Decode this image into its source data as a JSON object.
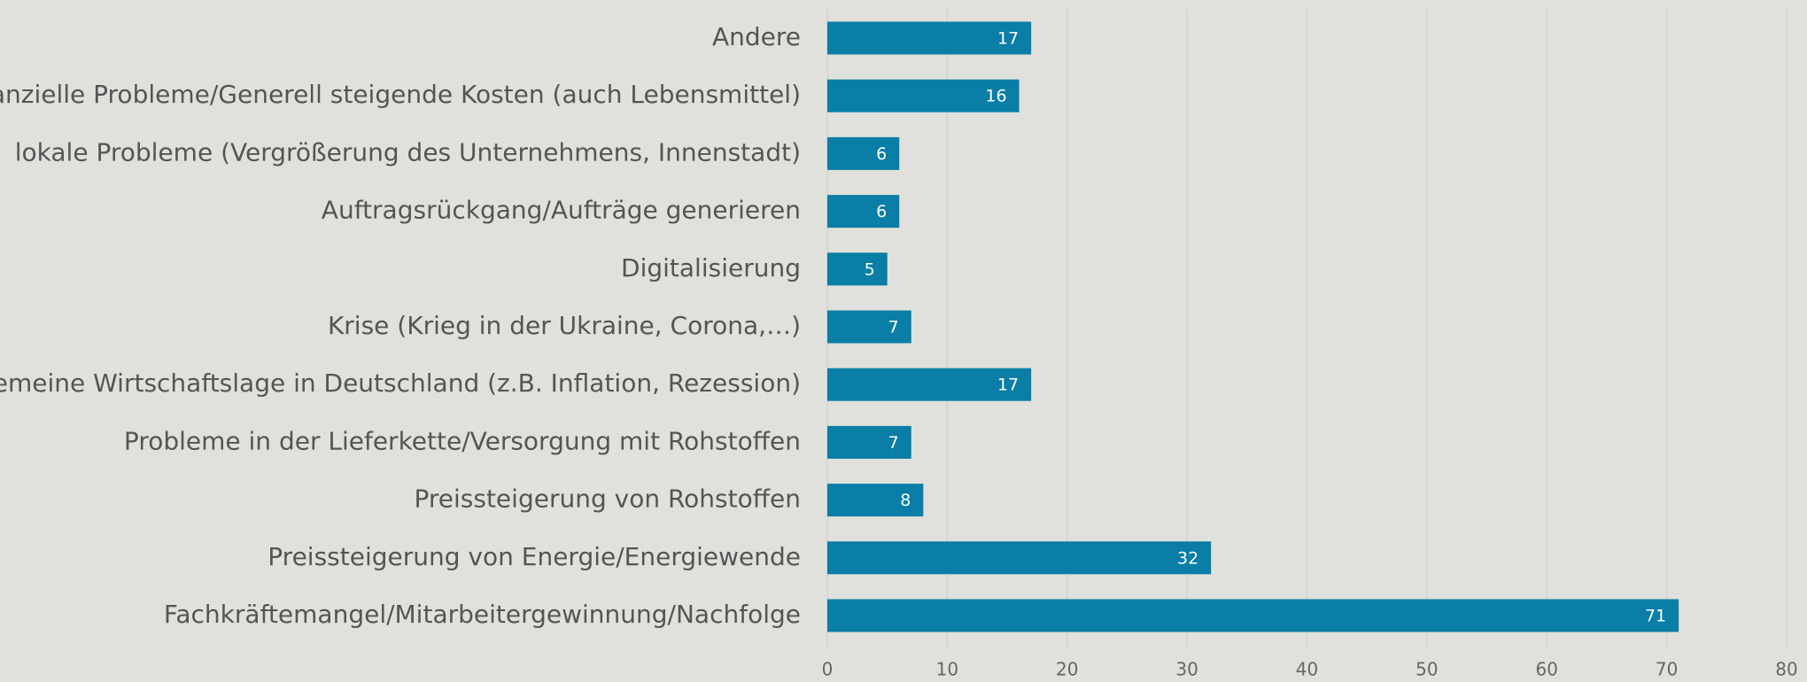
{
  "chart_data": {
    "type": "bar",
    "orientation": "horizontal",
    "categories": [
      "Andere",
      "finanzielle Probleme/Generell steigende Kosten (auch Lebensmittel)",
      "lokale Probleme (Vergrößerung des Unternehmens, Innenstadt)",
      "Auftragsrückgang/Aufträge generieren",
      "Digitalisierung",
      "Krise (Krieg in der Ukraine, Corona,…)",
      "Allgemeine Wirtschaftslage in Deutschland (z.B. Inflation, Rezession)",
      "Probleme in der Lieferkette/Versorgung mit Rohstoffen",
      "Preissteigerung von Rohstoffen",
      "Preissteigerung von Energie/Energiewende",
      "Fachkräftemangel/Mitarbeitergewinnung/Nachfolge"
    ],
    "values": [
      17,
      16,
      6,
      6,
      5,
      7,
      17,
      7,
      8,
      32,
      71
    ],
    "color": "#0a7ea6",
    "xlim": [
      0,
      80
    ],
    "xticks": [
      0,
      10,
      20,
      30,
      40,
      50,
      60,
      70,
      80
    ],
    "grid": true
  }
}
